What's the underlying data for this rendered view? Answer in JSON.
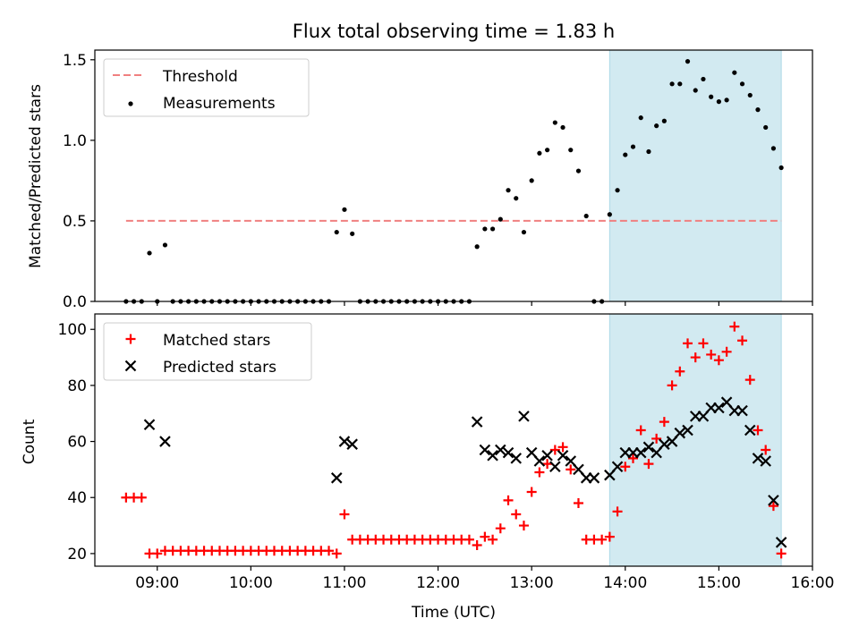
{
  "title": "Flux total observing time = 1.83 h",
  "colors": {
    "threshold": "#f08080",
    "measurement": "#000000",
    "matched": "#ff0000",
    "predicted": "#000000",
    "span": "#add8e6"
  },
  "chart_data": [
    {
      "type": "scatter",
      "ylabel": "Matched/Predicted stars",
      "ylim": [
        0,
        1.56
      ],
      "yticks": [
        "0.0",
        "0.5",
        "1.0",
        "1.5"
      ],
      "legend": {
        "placement": "top-left",
        "entries": [
          "Threshold",
          "Measurements"
        ]
      },
      "highlight_span": [
        "13:50",
        "15:40"
      ],
      "threshold": {
        "name": "Threshold",
        "value": 0.5,
        "x_range": [
          "08:40",
          "15:40"
        ]
      },
      "series": [
        {
          "name": "Measurements",
          "marker": "dot",
          "points": [
            [
              "08:40",
              0
            ],
            [
              "08:45",
              0
            ],
            [
              "08:50",
              0
            ],
            [
              "08:55",
              0.3
            ],
            [
              "09:00",
              0
            ],
            [
              "09:05",
              0.35
            ],
            [
              "09:10",
              0
            ],
            [
              "09:15",
              0
            ],
            [
              "09:20",
              0
            ],
            [
              "09:25",
              0
            ],
            [
              "09:30",
              0
            ],
            [
              "09:35",
              0
            ],
            [
              "09:40",
              0
            ],
            [
              "09:45",
              0
            ],
            [
              "09:50",
              0
            ],
            [
              "09:55",
              0
            ],
            [
              "10:00",
              0
            ],
            [
              "10:05",
              0
            ],
            [
              "10:10",
              0
            ],
            [
              "10:15",
              0
            ],
            [
              "10:20",
              0
            ],
            [
              "10:25",
              0
            ],
            [
              "10:30",
              0
            ],
            [
              "10:35",
              0
            ],
            [
              "10:40",
              0
            ],
            [
              "10:45",
              0
            ],
            [
              "10:50",
              0
            ],
            [
              "10:55",
              0.43
            ],
            [
              "11:00",
              0.57
            ],
            [
              "11:05",
              0.42
            ],
            [
              "11:10",
              0
            ],
            [
              "11:15",
              0
            ],
            [
              "11:20",
              0
            ],
            [
              "11:25",
              0
            ],
            [
              "11:30",
              0
            ],
            [
              "11:35",
              0
            ],
            [
              "11:40",
              0
            ],
            [
              "11:45",
              0
            ],
            [
              "11:50",
              0
            ],
            [
              "11:55",
              0
            ],
            [
              "12:00",
              0
            ],
            [
              "12:05",
              0
            ],
            [
              "12:10",
              0
            ],
            [
              "12:15",
              0
            ],
            [
              "12:20",
              0
            ],
            [
              "12:25",
              0.34
            ],
            [
              "12:30",
              0.45
            ],
            [
              "12:35",
              0.45
            ],
            [
              "12:40",
              0.51
            ],
            [
              "12:45",
              0.69
            ],
            [
              "12:50",
              0.64
            ],
            [
              "12:55",
              0.43
            ],
            [
              "13:00",
              0.75
            ],
            [
              "13:05",
              0.92
            ],
            [
              "13:10",
              0.94
            ],
            [
              "13:15",
              1.11
            ],
            [
              "13:20",
              1.08
            ],
            [
              "13:25",
              0.94
            ],
            [
              "13:30",
              0.81
            ],
            [
              "13:35",
              0.53
            ],
            [
              "13:40",
              0
            ],
            [
              "13:45",
              0
            ],
            [
              "13:50",
              0.54
            ],
            [
              "13:55",
              0.69
            ],
            [
              "14:00",
              0.91
            ],
            [
              "14:05",
              0.96
            ],
            [
              "14:10",
              1.14
            ],
            [
              "14:15",
              0.93
            ],
            [
              "14:20",
              1.09
            ],
            [
              "14:25",
              1.12
            ],
            [
              "14:30",
              1.35
            ],
            [
              "14:35",
              1.35
            ],
            [
              "14:40",
              1.49
            ],
            [
              "14:45",
              1.31
            ],
            [
              "14:50",
              1.38
            ],
            [
              "14:55",
              1.27
            ],
            [
              "15:00",
              1.24
            ],
            [
              "15:05",
              1.25
            ],
            [
              "15:10",
              1.42
            ],
            [
              "15:15",
              1.35
            ],
            [
              "15:20",
              1.28
            ],
            [
              "15:25",
              1.19
            ],
            [
              "15:30",
              1.08
            ],
            [
              "15:35",
              0.95
            ],
            [
              "15:40",
              0.83
            ]
          ]
        }
      ]
    },
    {
      "type": "scatter",
      "xlabel": "Time (UTC)",
      "ylabel": "Count",
      "ylim": [
        15.5,
        105.5
      ],
      "yticks": [
        "20",
        "40",
        "60",
        "80",
        "100"
      ],
      "xlim": [
        "08:20",
        "16:00"
      ],
      "xticks": [
        "09:00",
        "10:00",
        "11:00",
        "12:00",
        "13:00",
        "14:00",
        "15:00",
        "16:00"
      ],
      "legend": {
        "placement": "top-left",
        "entries": [
          "Matched stars",
          "Predicted stars"
        ]
      },
      "highlight_span": [
        "13:50",
        "15:40"
      ],
      "series": [
        {
          "name": "Matched stars",
          "marker": "plus",
          "points": [
            [
              "08:40",
              40
            ],
            [
              "08:45",
              40
            ],
            [
              "08:50",
              40
            ],
            [
              "08:55",
              20
            ],
            [
              "09:00",
              20
            ],
            [
              "09:05",
              21
            ],
            [
              "09:10",
              21
            ],
            [
              "09:15",
              21
            ],
            [
              "09:20",
              21
            ],
            [
              "09:25",
              21
            ],
            [
              "09:30",
              21
            ],
            [
              "09:35",
              21
            ],
            [
              "09:40",
              21
            ],
            [
              "09:45",
              21
            ],
            [
              "09:50",
              21
            ],
            [
              "09:55",
              21
            ],
            [
              "10:00",
              21
            ],
            [
              "10:05",
              21
            ],
            [
              "10:10",
              21
            ],
            [
              "10:15",
              21
            ],
            [
              "10:20",
              21
            ],
            [
              "10:25",
              21
            ],
            [
              "10:30",
              21
            ],
            [
              "10:35",
              21
            ],
            [
              "10:40",
              21
            ],
            [
              "10:45",
              21
            ],
            [
              "10:50",
              21
            ],
            [
              "10:55",
              20
            ],
            [
              "11:00",
              34
            ],
            [
              "11:05",
              25
            ],
            [
              "11:10",
              25
            ],
            [
              "11:15",
              25
            ],
            [
              "11:20",
              25
            ],
            [
              "11:25",
              25
            ],
            [
              "11:30",
              25
            ],
            [
              "11:35",
              25
            ],
            [
              "11:40",
              25
            ],
            [
              "11:45",
              25
            ],
            [
              "11:50",
              25
            ],
            [
              "11:55",
              25
            ],
            [
              "12:00",
              25
            ],
            [
              "12:05",
              25
            ],
            [
              "12:10",
              25
            ],
            [
              "12:15",
              25
            ],
            [
              "12:20",
              25
            ],
            [
              "12:25",
              23
            ],
            [
              "12:30",
              26
            ],
            [
              "12:35",
              25
            ],
            [
              "12:40",
              29
            ],
            [
              "12:45",
              39
            ],
            [
              "12:50",
              34
            ],
            [
              "12:55",
              30
            ],
            [
              "13:00",
              42
            ],
            [
              "13:05",
              49
            ],
            [
              "13:10",
              52
            ],
            [
              "13:15",
              57
            ],
            [
              "13:20",
              58
            ],
            [
              "13:25",
              50
            ],
            [
              "13:30",
              38
            ],
            [
              "13:35",
              25
            ],
            [
              "13:40",
              25
            ],
            [
              "13:45",
              25
            ],
            [
              "13:50",
              26
            ],
            [
              "13:55",
              35
            ],
            [
              "14:00",
              51
            ],
            [
              "14:05",
              54
            ],
            [
              "14:10",
              64
            ],
            [
              "14:15",
              52
            ],
            [
              "14:20",
              61
            ],
            [
              "14:25",
              67
            ],
            [
              "14:30",
              80
            ],
            [
              "14:35",
              85
            ],
            [
              "14:40",
              95
            ],
            [
              "14:45",
              90
            ],
            [
              "14:50",
              95
            ],
            [
              "14:55",
              91
            ],
            [
              "15:00",
              89
            ],
            [
              "15:05",
              92
            ],
            [
              "15:10",
              101
            ],
            [
              "15:15",
              96
            ],
            [
              "15:20",
              82
            ],
            [
              "15:25",
              64
            ],
            [
              "15:30",
              57
            ],
            [
              "15:35",
              37
            ],
            [
              "15:40",
              20
            ]
          ]
        },
        {
          "name": "Predicted stars",
          "marker": "x",
          "points": [
            [
              "08:55",
              66
            ],
            [
              "09:05",
              60
            ],
            [
              "10:55",
              47
            ],
            [
              "11:00",
              60
            ],
            [
              "11:05",
              59
            ],
            [
              "12:25",
              67
            ],
            [
              "12:30",
              57
            ],
            [
              "12:35",
              55
            ],
            [
              "12:40",
              57
            ],
            [
              "12:45",
              56
            ],
            [
              "12:50",
              54
            ],
            [
              "12:55",
              69
            ],
            [
              "13:00",
              56
            ],
            [
              "13:05",
              53
            ],
            [
              "13:10",
              55
            ],
            [
              "13:15",
              51
            ],
            [
              "13:20",
              55
            ],
            [
              "13:25",
              53
            ],
            [
              "13:30",
              50
            ],
            [
              "13:35",
              47
            ],
            [
              "13:40",
              47
            ],
            [
              "13:50",
              48
            ],
            [
              "13:55",
              51
            ],
            [
              "14:00",
              56
            ],
            [
              "14:05",
              56
            ],
            [
              "14:10",
              56
            ],
            [
              "14:15",
              58
            ],
            [
              "14:20",
              56
            ],
            [
              "14:25",
              59
            ],
            [
              "14:30",
              60
            ],
            [
              "14:35",
              63
            ],
            [
              "14:40",
              64
            ],
            [
              "14:45",
              69
            ],
            [
              "14:50",
              69
            ],
            [
              "14:55",
              72
            ],
            [
              "15:00",
              72
            ],
            [
              "15:05",
              74
            ],
            [
              "15:10",
              71
            ],
            [
              "15:15",
              71
            ],
            [
              "15:20",
              64
            ],
            [
              "15:25",
              54
            ],
            [
              "15:30",
              53
            ],
            [
              "15:35",
              39
            ],
            [
              "15:40",
              24
            ]
          ]
        }
      ]
    }
  ]
}
